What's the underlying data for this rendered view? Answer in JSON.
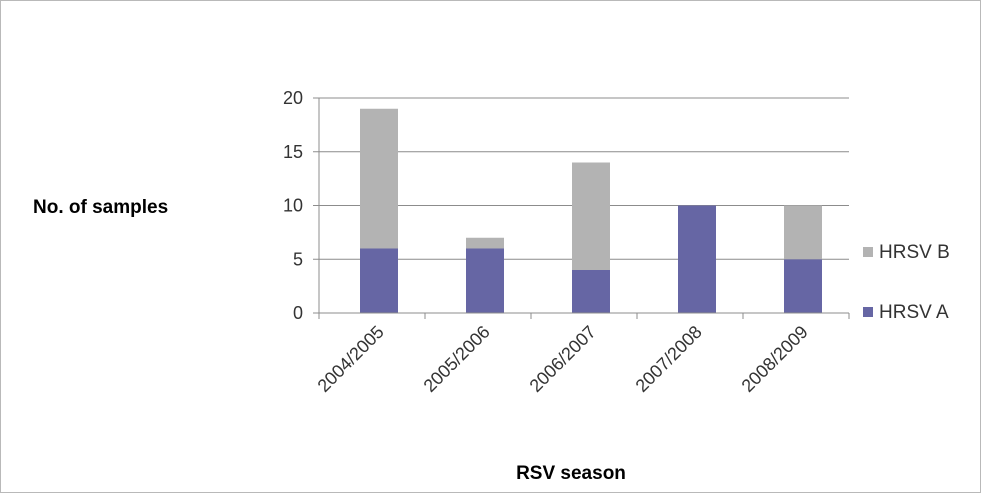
{
  "chart_data": {
    "type": "bar",
    "stacked": true,
    "title": "",
    "xlabel": "RSV season",
    "ylabel": "No. of samples",
    "categories": [
      "2004/2005",
      "2005/2006",
      "2006/2007",
      "2007/2008",
      "2008/2009"
    ],
    "series": [
      {
        "name": "HRSV A",
        "color": "#6666a4",
        "values": [
          6,
          6,
          4,
          10,
          5
        ]
      },
      {
        "name": "HRSV B",
        "color": "#b3b3b3",
        "values": [
          13,
          1,
          10,
          0,
          5
        ]
      }
    ],
    "ylim": [
      0,
      20
    ],
    "yticks": [
      0,
      5,
      10,
      15,
      20
    ],
    "grid": true,
    "legend_position": "right"
  }
}
